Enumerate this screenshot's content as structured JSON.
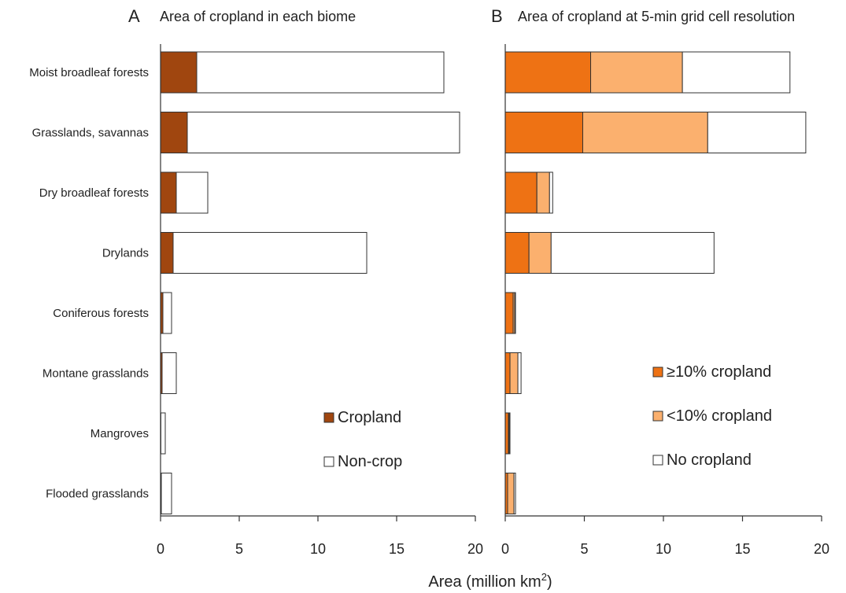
{
  "xlabel": "Area (million km",
  "xlabel_sup": "2",
  "xlabel_close": ")",
  "chart_data": [
    {
      "type": "bar",
      "orientation": "horizontal",
      "stacked": true,
      "panel_letter": "A",
      "title": "Area of cropland in each biome",
      "categories": [
        "Moist broadleaf forests",
        "Grasslands, savannas",
        "Dry broadleaf forests",
        "Drylands",
        "Coniferous forests",
        "Montane grasslands",
        "Mangroves",
        "Flooded grasslands"
      ],
      "xlim": [
        0,
        20
      ],
      "xticks": [
        "0",
        "5",
        "10",
        "15",
        "20"
      ],
      "series": [
        {
          "name": "Cropland",
          "color": "#a0460f",
          "values": [
            2.3,
            1.7,
            1.0,
            0.8,
            0.15,
            0.1,
            0.02,
            0.05
          ]
        },
        {
          "name": "Non-crop",
          "color": "#ffffff",
          "values": [
            15.7,
            17.3,
            2.0,
            12.3,
            0.55,
            0.9,
            0.28,
            0.65
          ]
        }
      ],
      "legend_position": "bottom-right"
    },
    {
      "type": "bar",
      "orientation": "horizontal",
      "stacked": true,
      "panel_letter": "B",
      "title": "Area of cropland at 5-min grid cell resolution",
      "categories": [
        "Moist broadleaf forests",
        "Grasslands, savannas",
        "Dry broadleaf forests",
        "Drylands",
        "Coniferous forests",
        "Montane grasslands",
        "Mangroves",
        "Flooded grasslands"
      ],
      "xlim": [
        0,
        20
      ],
      "xticks": [
        "0",
        "5",
        "10",
        "15",
        "20"
      ],
      "series": [
        {
          "name": "≥10% cropland",
          "color": "#ee7214",
          "values": [
            5.4,
            4.9,
            2.0,
            1.5,
            0.5,
            0.3,
            0.2,
            0.15
          ]
        },
        {
          "name": "<10% cropland",
          "color": "#fbb06e",
          "values": [
            5.8,
            7.9,
            0.8,
            1.4,
            0.1,
            0.5,
            0.05,
            0.4
          ]
        },
        {
          "name": "No cropland",
          "color": "#ffffff",
          "values": [
            6.8,
            6.2,
            0.2,
            10.3,
            0.05,
            0.2,
            0.05,
            0.1
          ]
        }
      ],
      "legend_position": "bottom-right"
    }
  ]
}
